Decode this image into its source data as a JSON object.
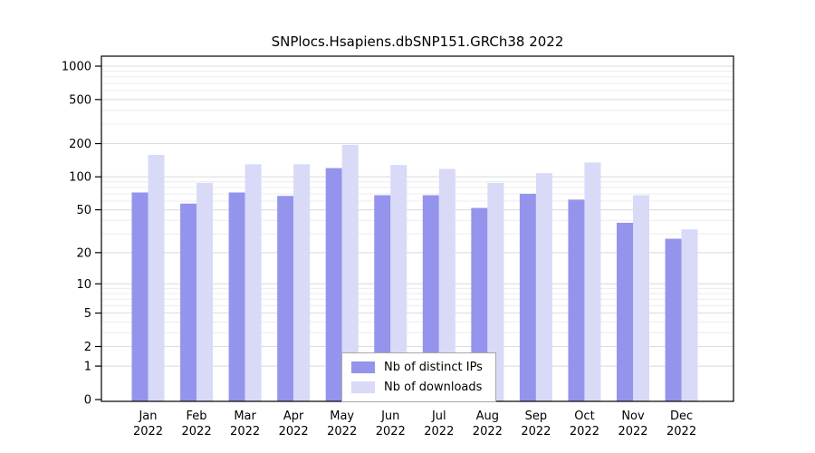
{
  "chart_data": {
    "type": "bar",
    "title": "SNPlocs.Hsapiens.dbSNP151.GRCh38 2022",
    "categories": [
      "Jan",
      "Feb",
      "Mar",
      "Apr",
      "May",
      "Jun",
      "Jul",
      "Aug",
      "Sep",
      "Oct",
      "Nov",
      "Dec"
    ],
    "year_label": "2022",
    "series": [
      {
        "name": "Nb of distinct IPs",
        "color": "#9494ec",
        "values": [
          72,
          57,
          72,
          67,
          120,
          68,
          68,
          52,
          70,
          62,
          38,
          27
        ]
      },
      {
        "name": "Nb of downloads",
        "color": "#d9d9f8",
        "values": [
          158,
          88,
          130,
          130,
          195,
          128,
          118,
          88,
          108,
          135,
          68,
          33
        ]
      }
    ],
    "yticks": [
      0,
      1,
      2,
      5,
      10,
      20,
      50,
      100,
      200,
      500,
      1000
    ],
    "yscale": "log10(value+1)",
    "ylim": [
      0,
      1000
    ],
    "grid": "horizontal-log-minor",
    "legend_position": "bottom-center-inside"
  },
  "colors": {
    "bar_ips": "#9494ec",
    "bar_downloads": "#d9d9f8",
    "grid_minor": "#ececec",
    "grid_major": "#dcdcdc",
    "axis": "#000000",
    "background": "#ffffff",
    "legend_border": "#a8a8a8"
  }
}
